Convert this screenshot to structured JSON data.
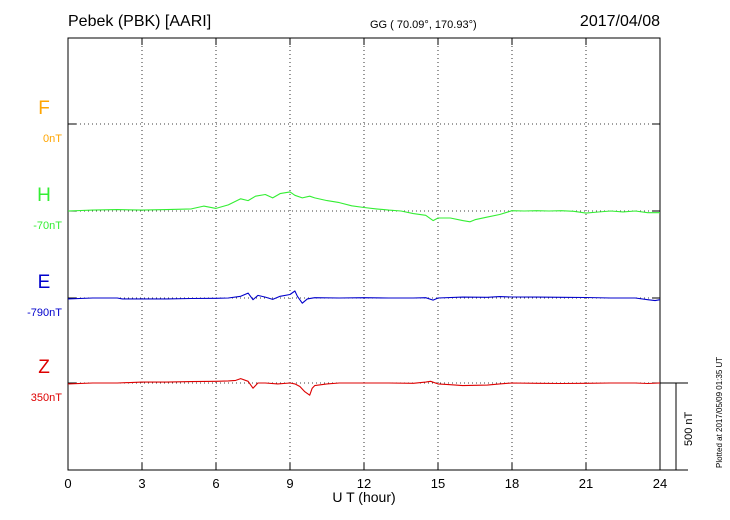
{
  "header": {
    "station": "Pebek (PBK)  [AARI]",
    "coords": "GG ( 70.09°, 170.93°)",
    "date": "2017/04/08"
  },
  "footer": "Plotted at 2017/05/09 01:35 UT",
  "scale_label": "500 nT",
  "chart_data": {
    "type": "line",
    "title": "Pebek (PBK)  [AARI]",
    "xlabel": "U T (hour)",
    "ylabel": "",
    "xlim": [
      0,
      24
    ],
    "x_ticks": [
      "0",
      "3",
      "6",
      "9",
      "12",
      "15",
      "18",
      "21",
      "24"
    ],
    "grid": true,
    "scale_bar_nT": 500,
    "series": [
      {
        "name": "F",
        "offset": "0nT",
        "color": "#ffa500",
        "values": []
      },
      {
        "name": "H",
        "offset": "-70nT",
        "color": "#33ee33",
        "values": [
          [
            0,
            0
          ],
          [
            1,
            5
          ],
          [
            2,
            8
          ],
          [
            3,
            5
          ],
          [
            4,
            8
          ],
          [
            5,
            12
          ],
          [
            5.5,
            28
          ],
          [
            6,
            15
          ],
          [
            6.5,
            35
          ],
          [
            7,
            70
          ],
          [
            7.3,
            60
          ],
          [
            7.6,
            85
          ],
          [
            8,
            95
          ],
          [
            8.3,
            75
          ],
          [
            8.6,
            100
          ],
          [
            9,
            110
          ],
          [
            9.2,
            90
          ],
          [
            9.5,
            75
          ],
          [
            9.8,
            85
          ],
          [
            10,
            75
          ],
          [
            10.5,
            60
          ],
          [
            11,
            48
          ],
          [
            11.5,
            30
          ],
          [
            12,
            20
          ],
          [
            12.5,
            12
          ],
          [
            13,
            5
          ],
          [
            13.5,
            0
          ],
          [
            14,
            -15
          ],
          [
            14.5,
            -25
          ],
          [
            14.8,
            -55
          ],
          [
            15,
            -40
          ],
          [
            15.5,
            -40
          ],
          [
            16,
            -55
          ],
          [
            16.3,
            -62
          ],
          [
            16.5,
            -50
          ],
          [
            17,
            -35
          ],
          [
            17.5,
            -20
          ],
          [
            18,
            2
          ],
          [
            18.5,
            0
          ],
          [
            19,
            2
          ],
          [
            19.5,
            0
          ],
          [
            20,
            2
          ],
          [
            20.5,
            -2
          ],
          [
            21,
            -12
          ],
          [
            21.5,
            -6
          ],
          [
            22,
            0
          ],
          [
            22.5,
            -5
          ],
          [
            23,
            0
          ],
          [
            23.5,
            -10
          ],
          [
            24,
            -10
          ]
        ]
      },
      {
        "name": "E",
        "offset": "-790nT",
        "color": "#0000cc",
        "values": [
          [
            0,
            -5
          ],
          [
            1,
            0
          ],
          [
            2,
            0
          ],
          [
            2.2,
            -5
          ],
          [
            3,
            -5
          ],
          [
            4,
            -5
          ],
          [
            5,
            -3
          ],
          [
            6,
            -2
          ],
          [
            6.5,
            0
          ],
          [
            7,
            10
          ],
          [
            7.3,
            28
          ],
          [
            7.5,
            -10
          ],
          [
            7.7,
            15
          ],
          [
            8,
            5
          ],
          [
            8.3,
            -8
          ],
          [
            8.6,
            10
          ],
          [
            9,
            20
          ],
          [
            9.2,
            40
          ],
          [
            9.3,
            10
          ],
          [
            9.5,
            -30
          ],
          [
            9.7,
            -5
          ],
          [
            10,
            2
          ],
          [
            11,
            0
          ],
          [
            12,
            2
          ],
          [
            13,
            0
          ],
          [
            14,
            0
          ],
          [
            14.5,
            2
          ],
          [
            14.8,
            -12
          ],
          [
            15,
            0
          ],
          [
            16,
            5
          ],
          [
            17,
            4
          ],
          [
            17.5,
            8
          ],
          [
            18,
            6
          ],
          [
            19,
            5
          ],
          [
            20,
            4
          ],
          [
            21,
            3
          ],
          [
            22,
            0
          ],
          [
            23,
            0
          ],
          [
            23.5,
            -10
          ],
          [
            23.8,
            -15
          ],
          [
            24,
            -10
          ]
        ]
      },
      {
        "name": "Z",
        "offset": "350nT",
        "color": "#dd0000",
        "values": [
          [
            0,
            -5
          ],
          [
            1,
            0
          ],
          [
            2,
            0
          ],
          [
            3,
            5
          ],
          [
            4,
            5
          ],
          [
            5,
            8
          ],
          [
            6,
            10
          ],
          [
            6.5,
            12
          ],
          [
            6.8,
            15
          ],
          [
            7,
            25
          ],
          [
            7.3,
            10
          ],
          [
            7.5,
            -30
          ],
          [
            7.7,
            0
          ],
          [
            8,
            0
          ],
          [
            8.5,
            -5
          ],
          [
            9,
            0
          ],
          [
            9.2,
            -5
          ],
          [
            9.4,
            -20
          ],
          [
            9.6,
            -50
          ],
          [
            9.8,
            -70
          ],
          [
            9.9,
            -30
          ],
          [
            10,
            -15
          ],
          [
            10.5,
            -5
          ],
          [
            11,
            0
          ],
          [
            12,
            0
          ],
          [
            13,
            0
          ],
          [
            14,
            -2
          ],
          [
            14.5,
            5
          ],
          [
            14.7,
            10
          ],
          [
            15,
            -5
          ],
          [
            15.5,
            -10
          ],
          [
            16,
            -15
          ],
          [
            17,
            -12
          ],
          [
            17.5,
            -5
          ],
          [
            18,
            0
          ],
          [
            19,
            -2
          ],
          [
            20,
            -3
          ],
          [
            21,
            -2
          ],
          [
            22,
            0
          ],
          [
            23,
            0
          ],
          [
            23.5,
            -3
          ],
          [
            24,
            0
          ]
        ]
      }
    ]
  }
}
